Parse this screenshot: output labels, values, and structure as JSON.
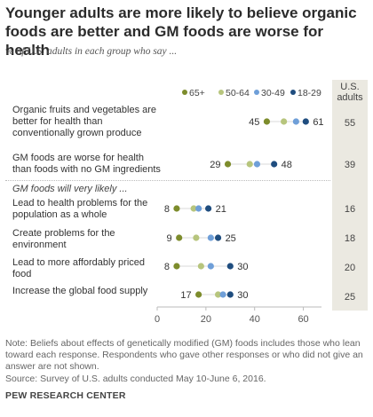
{
  "title": "Younger adults are more likely to believe organic foods are better and GM foods are worse for health",
  "subtitle": "% of U.S. adults in each group who say ...",
  "us_header": "U.S. adults",
  "section_label": "GM foods will very likely ...",
  "note": "Note: Beliefs about effects of genetically modified (GM) foods includes those who lean toward each response. Respondents who gave other responses or who did not give an answer are not shown.",
  "source": "Source: Survey of U.S. adults conducted May 10-June 6, 2016.",
  "brand": "PEW RESEARCH CENTER",
  "chart_data": {
    "type": "scatter",
    "subtype": "dot-plot",
    "x_ticks": [
      0,
      20,
      40,
      60
    ],
    "xlim": [
      0,
      70
    ],
    "series": [
      {
        "name": "65+",
        "color": "#7d8c2c"
      },
      {
        "name": "50-64",
        "color": "#b7c57d"
      },
      {
        "name": "30-49",
        "color": "#6f9fd8"
      },
      {
        "name": "18-29",
        "color": "#1f4d7f"
      }
    ],
    "categories": [
      {
        "label": "Organic fruits and vegetables are better for health than conventionally grown produce",
        "values": [
          45,
          52,
          57,
          61
        ],
        "low_label": "45",
        "high_label": "61",
        "us": "55"
      },
      {
        "label": "GM foods are worse for health than foods with no GM ingredients",
        "values": [
          29,
          38,
          41,
          48
        ],
        "low_label": "29",
        "high_label": "48",
        "us": "39"
      },
      {
        "label": "Lead to health problems for the population as a whole",
        "values": [
          8,
          15,
          17,
          21
        ],
        "low_label": "8",
        "high_label": "21",
        "us": "16"
      },
      {
        "label": "Create problems for the environment",
        "values": [
          9,
          16,
          22,
          25
        ],
        "low_label": "9",
        "high_label": "25",
        "us": "18"
      },
      {
        "label": "Lead to more affordably priced food",
        "values": [
          8,
          18,
          22,
          30
        ],
        "low_label": "8",
        "high_label": "30",
        "us": "20"
      },
      {
        "label": "Increase the global food supply",
        "values": [
          17,
          25,
          27,
          30
        ],
        "low_label": "17",
        "high_label": "30",
        "us": "25"
      }
    ]
  }
}
